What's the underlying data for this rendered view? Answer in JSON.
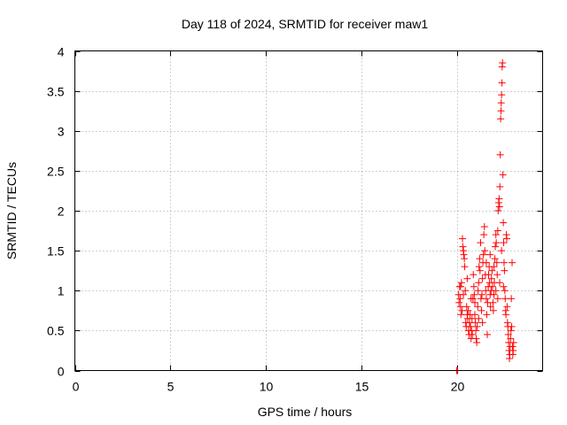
{
  "chart_data": {
    "type": "scatter",
    "title": "Day 118 of 2024, SRMTID for receiver maw1",
    "xlabel": "GPS time / hours",
    "ylabel": "SRMTID / TECUs",
    "xlim": [
      0,
      24.5
    ],
    "ylim": [
      0,
      4
    ],
    "xticks": [
      0,
      5,
      10,
      15,
      20
    ],
    "yticks": [
      0,
      0.5,
      1,
      1.5,
      2,
      2.5,
      3,
      3.5,
      4
    ],
    "xtick_labels": [
      "0",
      "5",
      "10",
      "15",
      "20"
    ],
    "ytick_labels": [
      "0",
      "0.5",
      "1",
      "1.5",
      "2",
      "2.5",
      "3",
      "3.5",
      "4"
    ],
    "grid": true,
    "marker": "+",
    "color": "#ff0000",
    "series": [
      {
        "name": "maw1",
        "points": [
          [
            20.0,
            0.0
          ],
          [
            20.02,
            0.0
          ],
          [
            20.05,
            0.0
          ],
          [
            20.1,
            0.95
          ],
          [
            20.12,
            0.85
          ],
          [
            20.15,
            1.05
          ],
          [
            20.18,
            0.9
          ],
          [
            20.2,
            0.8
          ],
          [
            20.22,
            0.7
          ],
          [
            20.25,
            1.1
          ],
          [
            20.28,
            0.75
          ],
          [
            20.3,
            1.65
          ],
          [
            20.32,
            1.55
          ],
          [
            20.35,
            1.5
          ],
          [
            20.37,
            1.45
          ],
          [
            20.4,
            1.4
          ],
          [
            20.42,
            1.3
          ],
          [
            20.45,
            1.0
          ],
          [
            20.47,
            0.6
          ],
          [
            20.5,
            0.55
          ],
          [
            20.52,
            0.8
          ],
          [
            20.55,
            0.7
          ],
          [
            20.57,
            0.65
          ],
          [
            20.6,
            0.75
          ],
          [
            20.62,
            0.5
          ],
          [
            20.65,
            0.45
          ],
          [
            20.67,
            0.6
          ],
          [
            20.7,
            0.7
          ],
          [
            20.72,
            0.55
          ],
          [
            20.75,
            0.4
          ],
          [
            20.77,
            0.5
          ],
          [
            20.8,
            0.65
          ],
          [
            20.82,
            0.45
          ],
          [
            20.85,
            0.9
          ],
          [
            20.87,
            1.2
          ],
          [
            20.9,
            1.05
          ],
          [
            20.92,
            0.95
          ],
          [
            20.95,
            0.85
          ],
          [
            20.97,
            0.6
          ],
          [
            21.0,
            0.5
          ],
          [
            21.02,
            0.4
          ],
          [
            21.05,
            0.35
          ],
          [
            21.07,
            0.55
          ],
          [
            21.1,
            0.8
          ],
          [
            21.12,
            1.0
          ],
          [
            21.15,
            1.1
          ],
          [
            21.17,
            1.3
          ],
          [
            21.2,
            1.4
          ],
          [
            21.22,
            1.25
          ],
          [
            21.25,
            1.6
          ],
          [
            21.27,
            0.9
          ],
          [
            21.3,
            0.75
          ],
          [
            21.32,
            0.95
          ],
          [
            21.35,
            1.15
          ],
          [
            21.37,
            1.35
          ],
          [
            21.4,
            1.45
          ],
          [
            21.42,
            1.7
          ],
          [
            21.45,
            1.8
          ],
          [
            21.47,
            1.5
          ],
          [
            21.5,
            1.2
          ],
          [
            21.52,
            1.0
          ],
          [
            21.55,
            0.9
          ],
          [
            21.57,
            0.7
          ],
          [
            21.6,
            0.45
          ],
          [
            21.62,
            0.85
          ],
          [
            21.65,
            1.05
          ],
          [
            21.67,
            1.2
          ],
          [
            21.7,
            1.3
          ],
          [
            21.72,
            1.1
          ],
          [
            21.75,
            0.95
          ],
          [
            21.77,
            0.8
          ],
          [
            21.8,
            1.0
          ],
          [
            21.82,
            1.15
          ],
          [
            21.85,
            1.25
          ],
          [
            21.87,
            1.05
          ],
          [
            21.9,
            0.85
          ],
          [
            21.92,
            0.75
          ],
          [
            21.95,
            0.95
          ],
          [
            21.97,
            1.1
          ],
          [
            22.0,
            1.4
          ],
          [
            22.02,
            1.55
          ],
          [
            22.05,
            1.7
          ],
          [
            22.07,
            1.6
          ],
          [
            22.1,
            1.35
          ],
          [
            22.12,
            1.2
          ],
          [
            22.15,
            1.75
          ],
          [
            22.17,
            2.0
          ],
          [
            22.2,
            2.1
          ],
          [
            22.22,
            2.15
          ],
          [
            22.24,
            2.05
          ],
          [
            22.26,
            2.3
          ],
          [
            22.28,
            2.7
          ],
          [
            22.3,
            3.15
          ],
          [
            22.32,
            3.25
          ],
          [
            22.33,
            3.35
          ],
          [
            22.35,
            3.45
          ],
          [
            22.37,
            3.6
          ],
          [
            22.38,
            3.8
          ],
          [
            22.4,
            3.85
          ],
          [
            22.42,
            2.45
          ],
          [
            22.44,
            1.85
          ],
          [
            22.46,
            1.6
          ],
          [
            22.48,
            1.35
          ],
          [
            22.5,
            1.25
          ],
          [
            22.52,
            1.0
          ],
          [
            22.54,
            0.9
          ],
          [
            22.56,
            0.75
          ],
          [
            22.58,
            0.7
          ],
          [
            22.6,
            1.7
          ],
          [
            22.62,
            1.65
          ],
          [
            22.64,
            0.8
          ],
          [
            22.66,
            0.6
          ],
          [
            22.68,
            0.55
          ],
          [
            22.7,
            0.45
          ],
          [
            22.72,
            0.35
          ],
          [
            22.74,
            0.25
          ],
          [
            22.76,
            0.15
          ],
          [
            22.78,
            0.2
          ],
          [
            22.8,
            0.3
          ],
          [
            22.82,
            0.4
          ],
          [
            22.84,
            0.5
          ],
          [
            22.86,
            0.9
          ],
          [
            22.88,
            0.55
          ],
          [
            22.9,
            1.35
          ],
          [
            22.92,
            0.3
          ],
          [
            22.94,
            0.2
          ],
          [
            22.96,
            0.25
          ],
          [
            22.98,
            0.35
          ],
          [
            20.2,
            1.05
          ],
          [
            20.35,
            0.95
          ],
          [
            20.55,
            1.15
          ],
          [
            20.75,
            0.9
          ],
          [
            20.95,
            0.7
          ],
          [
            21.15,
            0.65
          ],
          [
            21.35,
            0.6
          ],
          [
            21.55,
            1.35
          ],
          [
            21.75,
            1.45
          ],
          [
            21.95,
            1.3
          ],
          [
            22.05,
            1.0
          ],
          [
            22.15,
            0.9
          ],
          [
            22.25,
            1.1
          ],
          [
            22.35,
            1.5
          ],
          [
            22.45,
            1.05
          ]
        ]
      }
    ]
  }
}
